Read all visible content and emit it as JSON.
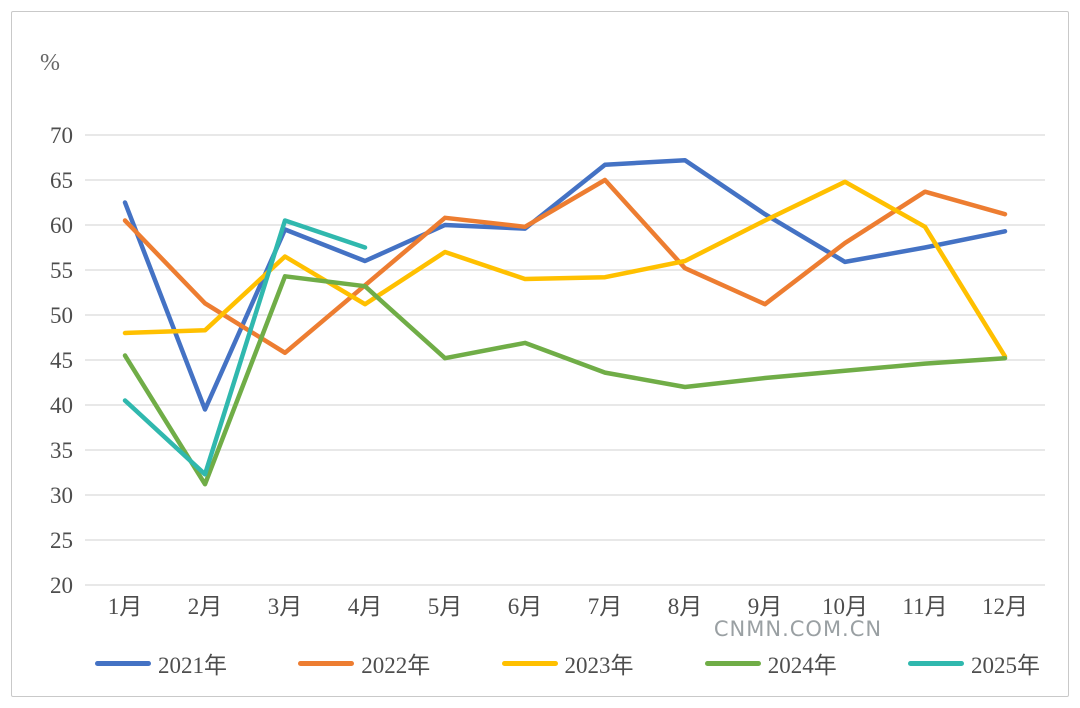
{
  "watermark": "CNMN.COM.CN",
  "chart_data": {
    "type": "line",
    "title": "",
    "xlabel": "",
    "ylabel": "%",
    "ylim": [
      20,
      70
    ],
    "ytick_step": 5,
    "grid": true,
    "legend_position": "bottom",
    "categories": [
      "1月",
      "2月",
      "3月",
      "4月",
      "5月",
      "6月",
      "7月",
      "8月",
      "9月",
      "10月",
      "11月",
      "12月"
    ],
    "series": [
      {
        "name": "2021年",
        "color": "#4472C4",
        "values": [
          62.5,
          39.5,
          59.5,
          56.0,
          60.0,
          59.6,
          66.7,
          67.2,
          61.2,
          55.9,
          57.5,
          59.3
        ]
      },
      {
        "name": "2022年",
        "color": "#ED7D31",
        "values": [
          60.5,
          51.3,
          45.8,
          53.3,
          60.8,
          59.8,
          65.0,
          55.2,
          51.2,
          58.0,
          63.7,
          61.2
        ]
      },
      {
        "name": "2023年",
        "color": "#FFC000",
        "values": [
          48.0,
          48.3,
          56.5,
          51.2,
          57.0,
          54.0,
          54.2,
          56.0,
          60.5,
          64.8,
          59.8,
          45.4
        ]
      },
      {
        "name": "2024年",
        "color": "#70AD47",
        "values": [
          45.5,
          31.2,
          54.3,
          53.2,
          45.2,
          46.9,
          43.6,
          42.0,
          43.0,
          43.8,
          44.6,
          45.2
        ]
      },
      {
        "name": "2025年",
        "color": "#30B8AE",
        "values": [
          40.5,
          32.3,
          60.5,
          57.5
        ]
      }
    ],
    "gridline_color": "#d9d9d9",
    "tick_label_color": "#4d4d4d"
  }
}
